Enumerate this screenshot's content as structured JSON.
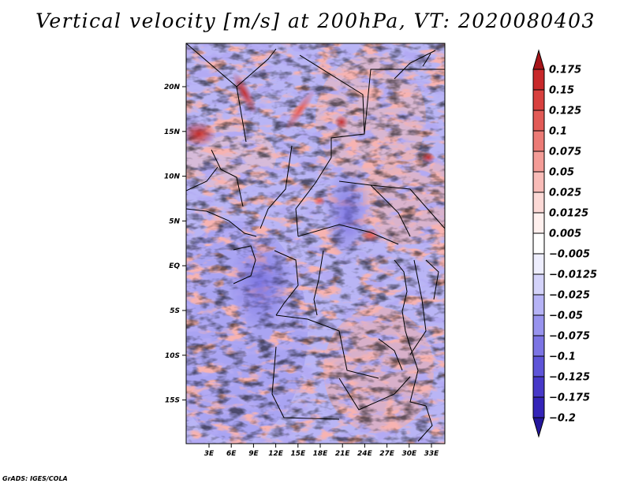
{
  "title": "Vertical velocity [m/s] at 200hPa, VT: 2020080403",
  "credit": "GrADS: IGES/COLA",
  "map": {
    "lat_labels": [
      "20N",
      "15N",
      "10N",
      "5N",
      "EQ",
      "5S",
      "10S",
      "15S"
    ],
    "lon_labels": [
      "3E",
      "6E",
      "9E",
      "12E",
      "15E",
      "18E",
      "21E",
      "24E",
      "27E",
      "30E",
      "33E"
    ]
  },
  "colorbar": {
    "levels": [
      {
        "label": "0.175",
        "color": "#b0181c"
      },
      {
        "label": "0.15",
        "color": "#c8282a"
      },
      {
        "label": "0.125",
        "color": "#d8403e"
      },
      {
        "label": "0.1",
        "color": "#e25a56"
      },
      {
        "label": "0.075",
        "color": "#ec7b76"
      },
      {
        "label": "0.05",
        "color": "#f49c97"
      },
      {
        "label": "0.025",
        "color": "#f9bcb8"
      },
      {
        "label": "0.0125",
        "color": "#fcd9d6"
      },
      {
        "label": "0.005",
        "color": "#fff0ee"
      },
      {
        "label": "−0.005",
        "color": "#ffffff"
      },
      {
        "label": "−0.0125",
        "color": "#eeeefe"
      },
      {
        "label": "−0.025",
        "color": "#d4d3fa"
      },
      {
        "label": "−0.05",
        "color": "#b6b3f6"
      },
      {
        "label": "−0.075",
        "color": "#9893ee"
      },
      {
        "label": "−0.1",
        "color": "#7c74e4"
      },
      {
        "label": "−0.125",
        "color": "#5e54d8"
      },
      {
        "label": "−0.175",
        "color": "#4738c8"
      },
      {
        "label": "−0.2",
        "color": "#3424b8"
      }
    ],
    "top_color": "#a61419",
    "bottom_color": "#24169c"
  }
}
